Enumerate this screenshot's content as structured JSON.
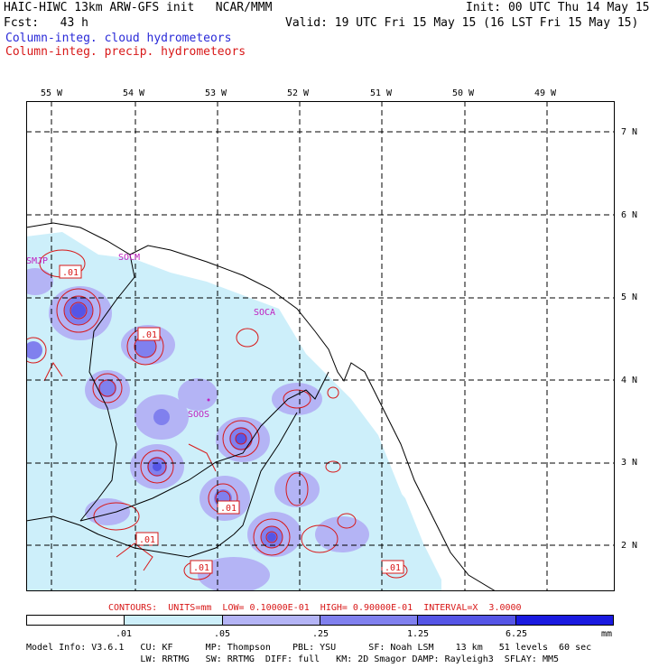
{
  "header": {
    "title": "HAIC-HIWC 13km ARW-GFS init   NCAR/MMM",
    "init": "Init: 00 UTC Thu 14 May 15",
    "fcst": "Fcst:   43 h",
    "valid": "Valid: 19 UTC Fri 15 May 15 (16 LST Fri 15 May 15)",
    "legend_cloud": "Column-integ. cloud hydrometeors",
    "legend_precip": "Column-integ. precip. hydrometeors"
  },
  "map": {
    "lon_labels": [
      "55 W",
      "54 W",
      "53 W",
      "52 W",
      "51 W",
      "50 W",
      "49 W"
    ],
    "lat_labels": [
      "7 N",
      "6 N",
      "5 N",
      "4 N",
      "3 N",
      "2 N"
    ],
    "stations": [
      "SMJP",
      "SOCM",
      "SOCA",
      "SOOS"
    ],
    "contour_labels": [
      ".01",
      ".01",
      ".01",
      ".01",
      ".01",
      ".01"
    ]
  },
  "contours_line": "CONTOURS:  UNITS=mm  LOW= 0.10000E-01  HIGH= 0.90000E-01  INTERVAL=X  3.0000",
  "colorbar": {
    "ticks": [
      ".01",
      ".05",
      ".25",
      "1.25",
      "6.25"
    ],
    "unit": "mm",
    "colors": [
      "#ffffff",
      "#cdeffa",
      "#b4b4f5",
      "#8080ee",
      "#5555e6",
      "#1a1ae0"
    ]
  },
  "model_info": {
    "line1": "Model Info: V3.6.1   CU: KF      MP: Thompson    PBL: YSU      SF: Noah LSM    13 km   51 levels  60 sec",
    "line2": "                     LW: RRTMG   SW: RRTMG  DIFF: full   KM: 2D Smagor DAMP: Rayleigh3  SFLAY: MM5"
  }
}
